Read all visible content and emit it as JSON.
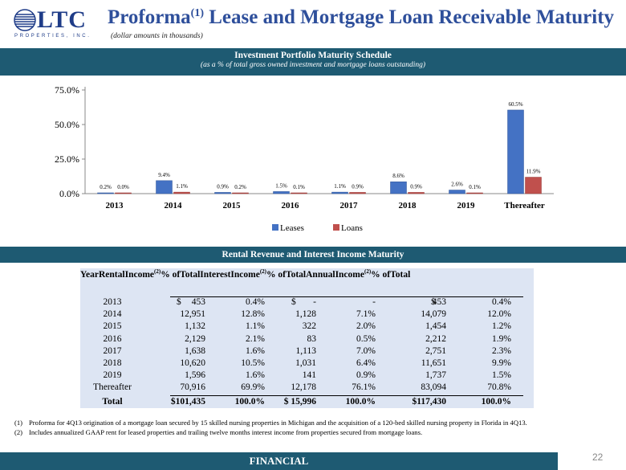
{
  "logo": {
    "text": "LTC",
    "subtext": "PROPERTIES, INC."
  },
  "header": {
    "title": "Proforma",
    "title_sup": "(1)",
    "title_rest": " Lease and Mortgage Loan Receivable Maturity",
    "subtitle": "(dollar amounts in thousands)"
  },
  "section1": {
    "title": "Investment Portfolio Maturity Schedule",
    "subtitle": "(as a % of total gross owned investment and mortgage loans outstanding)"
  },
  "section2": {
    "title": "Rental Revenue and Interest Income Maturity"
  },
  "chart_data": {
    "type": "bar",
    "categories": [
      "2013",
      "2014",
      "2015",
      "2016",
      "2017",
      "2018",
      "2019",
      "Thereafter"
    ],
    "series": [
      {
        "name": "Leases",
        "values": [
          0.2,
          9.4,
          0.9,
          1.5,
          1.1,
          8.6,
          2.6,
          60.5
        ],
        "labels": [
          "0.2%",
          "9.4%",
          "0.9%",
          "1.5%",
          "1.1%",
          "8.6%",
          "2.6%",
          "60.5%"
        ],
        "color": "#4472c4"
      },
      {
        "name": "Loans",
        "values": [
          0.0,
          1.1,
          0.2,
          0.1,
          0.9,
          0.9,
          0.1,
          11.9
        ],
        "labels": [
          "0.0%",
          "1.1%",
          "0.2%",
          "0.1%",
          "0.9%",
          "0.9%",
          "0.1%",
          "11.9%"
        ],
        "color": "#c0504d"
      }
    ],
    "yticks": [
      "0.0%",
      "25.0%",
      "50.0%",
      "75.0%"
    ],
    "ylim": [
      0,
      75
    ],
    "legend": "bottom",
    "grid": false
  },
  "table": {
    "headers": {
      "year": "Year",
      "rental_1": "Rental",
      "rental_2": "Income",
      "rental_sup": "(2)",
      "pct1_1": "% of",
      "pct1_2": "Total",
      "interest_1": "Interest",
      "interest_2": "Income",
      "interest_sup": "(2)",
      "pct2_1": "% of",
      "pct2_2": "Total",
      "annual_1": "Annual",
      "annual_2": "Income",
      "annual_sup": "(2)",
      "pct3_1": "% of",
      "pct3_2": "Total"
    },
    "rows": [
      {
        "year": "2013",
        "rental_cur": "$",
        "rental": "453",
        "pct1": "0.4%",
        "interest_cur": "$",
        "interest": "-",
        "pct2": "-",
        "annual_cur": "$",
        "annual": "453",
        "pct3": "0.4%"
      },
      {
        "year": "2014",
        "rental_cur": "",
        "rental": "12,951",
        "pct1": "12.8%",
        "interest_cur": "",
        "interest": "1,128",
        "pct2": "7.1%",
        "annual_cur": "",
        "annual": "14,079",
        "pct3": "12.0%"
      },
      {
        "year": "2015",
        "rental_cur": "",
        "rental": "1,132",
        "pct1": "1.1%",
        "interest_cur": "",
        "interest": "322",
        "pct2": "2.0%",
        "annual_cur": "",
        "annual": "1,454",
        "pct3": "1.2%"
      },
      {
        "year": "2016",
        "rental_cur": "",
        "rental": "2,129",
        "pct1": "2.1%",
        "interest_cur": "",
        "interest": "83",
        "pct2": "0.5%",
        "annual_cur": "",
        "annual": "2,212",
        "pct3": "1.9%"
      },
      {
        "year": "2017",
        "rental_cur": "",
        "rental": "1,638",
        "pct1": "1.6%",
        "interest_cur": "",
        "interest": "1,113",
        "pct2": "7.0%",
        "annual_cur": "",
        "annual": "2,751",
        "pct3": "2.3%"
      },
      {
        "year": "2018",
        "rental_cur": "",
        "rental": "10,620",
        "pct1": "10.5%",
        "interest_cur": "",
        "interest": "1,031",
        "pct2": "6.4%",
        "annual_cur": "",
        "annual": "11,651",
        "pct3": "9.9%"
      },
      {
        "year": "2019",
        "rental_cur": "",
        "rental": "1,596",
        "pct1": "1.6%",
        "interest_cur": "",
        "interest": "141",
        "pct2": "0.9%",
        "annual_cur": "",
        "annual": "1,737",
        "pct3": "1.5%"
      },
      {
        "year": "Thereafter",
        "rental_cur": "",
        "rental": "70,916",
        "pct1": "69.9%",
        "interest_cur": "",
        "interest": "12,178",
        "pct2": "76.1%",
        "annual_cur": "",
        "annual": "83,094",
        "pct3": "70.8%"
      }
    ],
    "total": {
      "year": "Total",
      "rental": "$101,435",
      "pct1": "100.0%",
      "interest": "$  15,996",
      "pct2": "100.0%",
      "annual": "$117,430",
      "pct3": "100.0%"
    }
  },
  "footnotes": [
    {
      "num": "(1)",
      "text": "Proforma for 4Q13 origination of a mortgage loan secured by 15 skilled nursing properties in Michigan and the acquisition of a 120-bed skilled nursing property in Florida in 4Q13."
    },
    {
      "num": "(2)",
      "text": "Includes annualized GAAP rent for leased properties and trailing twelve months interest income from properties secured from mortgage loans."
    }
  ],
  "footer": {
    "label": "FINANCIAL",
    "page": "22"
  },
  "colors": {
    "brand": "#2e4f9b",
    "bar": "#1e5a72",
    "table_bg": "#dde5f3"
  }
}
